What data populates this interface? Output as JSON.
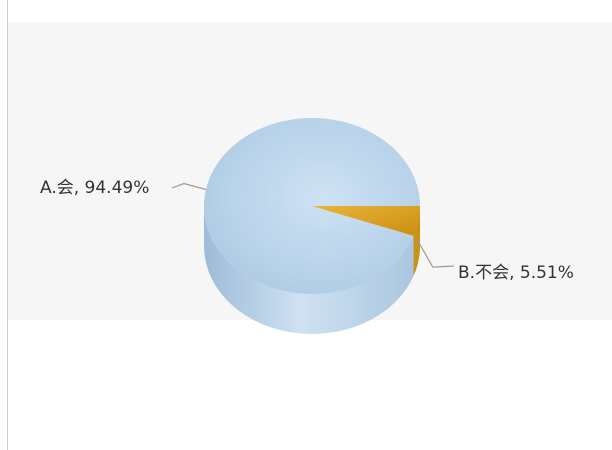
{
  "chart_data": {
    "type": "pie",
    "style": "3d",
    "slices": [
      {
        "label": "A.会",
        "value": 94.49,
        "display": "A.会, 94.49%",
        "color": "#b7d2e9"
      },
      {
        "label": "B.不会",
        "value": 5.51,
        "display": "B.不会, 5.51%",
        "color": "#e0a521"
      }
    ],
    "legend": "none",
    "data_labels": "outside-with-leader-lines"
  }
}
